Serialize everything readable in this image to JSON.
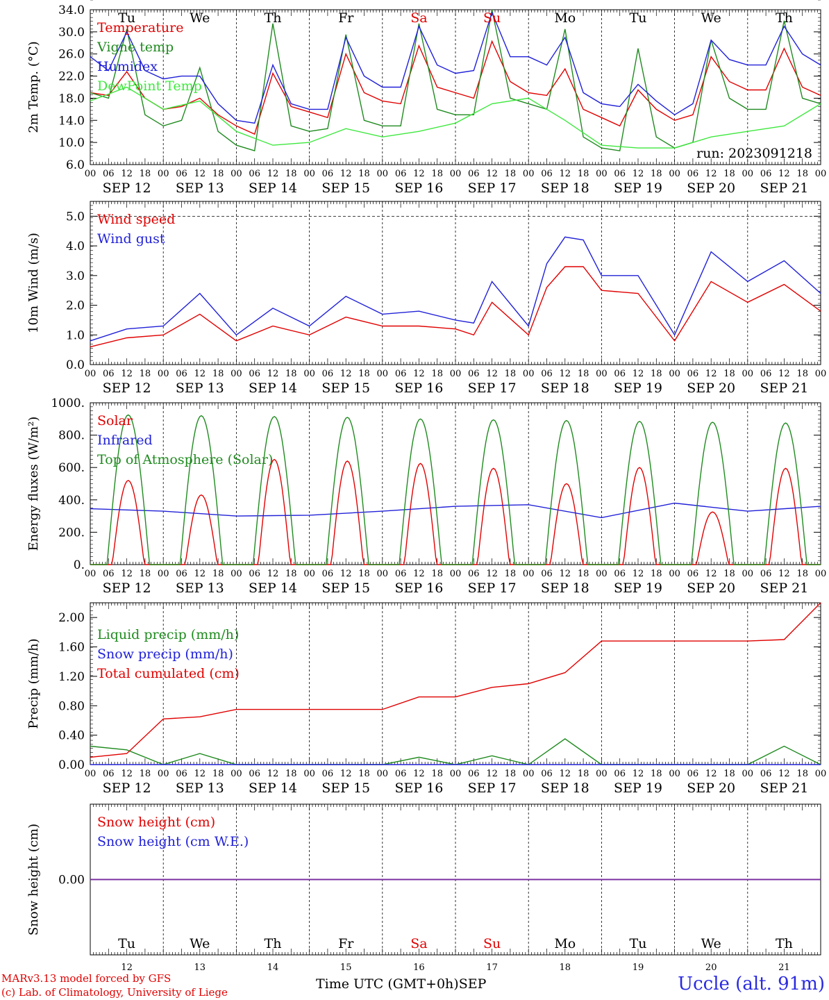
{
  "chart_data": {
    "type": "line",
    "time_axis": {
      "tick_hours": [
        "00",
        "06",
        "12",
        "18"
      ],
      "dates": [
        "SEP 12",
        "SEP 13",
        "SEP 14",
        "SEP 15",
        "SEP 16",
        "SEP 17",
        "SEP 18",
        "SEP 19",
        "SEP 20",
        "SEP 21"
      ],
      "weekdays": [
        "Tu",
        "We",
        "Th",
        "Fr",
        "Sa",
        "Su",
        "Mo",
        "Tu",
        "We",
        "Th"
      ],
      "weekend_indices": [
        4,
        5
      ],
      "day_numbers": [
        "12",
        "13",
        "14",
        "15",
        "16",
        "17",
        "18",
        "19",
        "20",
        "21"
      ],
      "xlabel": "Time UTC (GMT+0h)",
      "month": "SEP"
    },
    "panels": [
      {
        "id": "temperature",
        "ylabel": "2m Temp. (°C)",
        "ylim": [
          6,
          34
        ],
        "yticks": [
          "6.0",
          "10.0",
          "14.0",
          "18.0",
          "22.0",
          "26.0",
          "30.0",
          "34.0"
        ],
        "annotation": "run: 2023091218",
        "series": [
          {
            "name": "Temperature",
            "color": "#e00000",
            "x": [
              0,
              0.25,
              0.5,
              0.75,
              1,
              1.25,
              1.5,
              1.75,
              2,
              2.25,
              2.5,
              2.75,
              3,
              3.25,
              3.5,
              3.75,
              4,
              4.25,
              4.5,
              4.75,
              5,
              5.25,
              5.5,
              5.75,
              6,
              6.25,
              6.5,
              6.75,
              7,
              7.25,
              7.5,
              7.75,
              8,
              8.25,
              8.5,
              8.75,
              9,
              9.25,
              9.5,
              9.75,
              10
            ],
            "y": [
              19,
              18.5,
              22.8,
              18,
              16,
              16.5,
              18,
              15,
              13,
              11.5,
              22.5,
              16.5,
              15.5,
              14.5,
              26,
              19,
              17.5,
              17,
              27.5,
              20,
              19,
              18,
              28.3,
              21,
              19,
              18.5,
              23.3,
              16,
              14.5,
              13,
              19.5,
              16,
              14,
              15,
              25.5,
              21,
              19.5,
              19.5,
              27,
              20,
              18.5
            ]
          },
          {
            "name": "Vigne temp",
            "color": "#1f8a1f",
            "x": [
              0,
              0.25,
              0.5,
              0.75,
              1,
              1.25,
              1.5,
              1.75,
              2,
              2.25,
              2.5,
              2.75,
              3,
              3.25,
              3.5,
              3.75,
              4,
              4.25,
              4.5,
              4.75,
              5,
              5.25,
              5.5,
              5.75,
              6,
              6.25,
              6.5,
              6.75,
              7,
              7.25,
              7.5,
              7.75,
              8,
              8.25,
              8.5,
              8.75,
              9,
              9.25,
              9.5,
              9.75,
              10
            ],
            "y": [
              19,
              18,
              30.5,
              15,
              13,
              14,
              23.5,
              12,
              9.5,
              8.5,
              31.5,
              13,
              12,
              12.5,
              29.5,
              14,
              13,
              13,
              31.5,
              16,
              15,
              15,
              34,
              18,
              17,
              16,
              30.5,
              11,
              9,
              8.5,
              27,
              11,
              9,
              10,
              28.5,
              18,
              16,
              16,
              32,
              18,
              17
            ]
          },
          {
            "name": "Humidex",
            "color": "#2020d8",
            "x": [
              0,
              0.25,
              0.5,
              0.75,
              1,
              1.25,
              1.5,
              1.75,
              2,
              2.25,
              2.5,
              2.75,
              3,
              3.25,
              3.5,
              3.75,
              4,
              4.25,
              4.5,
              4.75,
              5,
              5.25,
              5.5,
              5.75,
              6,
              6.25,
              6.5,
              6.75,
              7,
              7.25,
              7.5,
              7.75,
              8,
              8.25,
              8.5,
              8.75,
              9,
              9.25,
              9.5,
              9.75,
              10
            ],
            "y": [
              25.5,
              23,
              30,
              23,
              21.5,
              22,
              22,
              17,
              14,
              13.5,
              24,
              17,
              16,
              16,
              29,
              22,
              20,
              20,
              31,
              24,
              22.5,
              23,
              33.5,
              25.5,
              25.5,
              24,
              29,
              19,
              17,
              16.5,
              20.5,
              17.5,
              15,
              17,
              28.5,
              25,
              24,
              24,
              31,
              26,
              24
            ]
          },
          {
            "name": "DewPoint Temp",
            "color": "#3ee83e",
            "x": [
              0,
              0.5,
              1,
              1.5,
              2,
              2.5,
              3,
              3.5,
              4,
              4.5,
              5,
              5.5,
              6,
              6.5,
              7,
              7.5,
              8,
              8.5,
              9,
              9.5,
              10
            ],
            "y": [
              17.5,
              20,
              16,
              17.5,
              12,
              9.5,
              10,
              12.5,
              11,
              12,
              13.5,
              17,
              18,
              14,
              9.5,
              9,
              9,
              11,
              12,
              13,
              17
            ]
          }
        ]
      },
      {
        "id": "wind",
        "ylabel": "10m Wind (m/s)",
        "ylim": [
          0,
          5.5
        ],
        "yticks": [
          "0.0",
          "1.0",
          "2.0",
          "3.0",
          "4.0",
          "5.0"
        ],
        "series": [
          {
            "name": "Wind speed",
            "color": "#e00000",
            "x": [
              0,
              0.5,
              1,
              1.5,
              2,
              2.5,
              3,
              3.5,
              4,
              4.5,
              5,
              5.25,
              5.5,
              6,
              6.25,
              6.5,
              6.75,
              7,
              7.5,
              8,
              8.5,
              9,
              9.5,
              10
            ],
            "y": [
              0.6,
              0.9,
              1.0,
              1.7,
              0.8,
              1.3,
              1.0,
              1.6,
              1.3,
              1.3,
              1.2,
              1.0,
              2.1,
              1.0,
              2.6,
              3.3,
              3.3,
              2.5,
              2.4,
              0.8,
              2.8,
              2.1,
              2.7,
              1.8
            ]
          },
          {
            "name": "Wind gust",
            "color": "#2020d8",
            "x": [
              0,
              0.5,
              1,
              1.5,
              2,
              2.5,
              3,
              3.5,
              4,
              4.5,
              5,
              5.25,
              5.5,
              6,
              6.25,
              6.5,
              6.75,
              7,
              7.5,
              8,
              8.5,
              9,
              9.5,
              10
            ],
            "y": [
              0.8,
              1.2,
              1.3,
              2.4,
              1.0,
              1.9,
              1.3,
              2.3,
              1.7,
              1.8,
              1.5,
              1.4,
              2.8,
              1.3,
              3.4,
              4.3,
              4.2,
              3.0,
              3.0,
              1.0,
              3.8,
              2.8,
              3.5,
              2.4
            ]
          }
        ]
      },
      {
        "id": "energy",
        "ylabel": "Energy fluxes (W/m²)",
        "ylim": [
          0,
          1000
        ],
        "yticks": [
          "0.",
          "200.",
          "400.",
          "600.",
          "800.",
          "1000."
        ],
        "series": [
          {
            "name": "Solar",
            "color": "#e00000",
            "peaks": [
              520,
              430,
              650,
              640,
              625,
              595,
              500,
              600,
              325,
              595
            ]
          },
          {
            "name": "Infrared",
            "color": "#2020d8",
            "x": [
              0,
              1,
              2,
              3,
              4,
              5,
              6,
              7,
              8,
              9,
              10
            ],
            "y": [
              345,
              330,
              300,
              305,
              330,
              360,
              370,
              290,
              380,
              330,
              360
            ]
          },
          {
            "name": "Top of Atmosphere (Solar)",
            "color": "#1f8a1f",
            "peaks": [
              925,
              920,
              915,
              910,
              900,
              895,
              890,
              885,
              880,
              875
            ]
          }
        ]
      },
      {
        "id": "precip",
        "ylabel": "Precip (mm/h)",
        "ylim": [
          0,
          2.2
        ],
        "yticks": [
          "0.00",
          "0.40",
          "0.80",
          "1.20",
          "1.60",
          "2.00"
        ],
        "series": [
          {
            "name": "Liquid precip (mm/h)",
            "color": "#1f8a1f",
            "x": [
              0,
              0.5,
              1,
              1.5,
              2,
              4,
              4.5,
              5,
              5.5,
              6,
              6.5,
              7,
              9,
              9.5,
              10
            ],
            "y": [
              0.25,
              0.2,
              0,
              0.15,
              0,
              0,
              0.1,
              0,
              0.12,
              0,
              0.35,
              0,
              0,
              0.25,
              0
            ]
          },
          {
            "name": "Snow precip (mm/h)",
            "color": "#2020d8",
            "x": [
              0,
              10
            ],
            "y": [
              0,
              0
            ]
          },
          {
            "name": "Total cumulated (cm)",
            "color": "#e00000",
            "x": [
              0,
              0.5,
              1,
              1.5,
              2,
              3,
              4,
              4.5,
              5,
              5.5,
              6,
              6.5,
              7,
              8,
              9,
              9.5,
              10
            ],
            "y": [
              0.1,
              0.15,
              0.62,
              0.65,
              0.75,
              0.75,
              0.75,
              0.92,
              0.92,
              1.05,
              1.1,
              1.25,
              1.68,
              1.68,
              1.68,
              1.7,
              2.2
            ]
          }
        ]
      },
      {
        "id": "snow",
        "ylabel": "Snow height (cm)",
        "ylim": [
          -1,
          1
        ],
        "yticks": [
          "0.00"
        ],
        "series": [
          {
            "name": "Snow height (cm)",
            "color": "#e00000",
            "x": [
              0,
              10
            ],
            "y": [
              0,
              0
            ]
          },
          {
            "name": "Snow height (cm W.E.)",
            "color": "#2020d8",
            "x": [
              0,
              10
            ],
            "y": [
              0,
              0
            ]
          }
        ]
      }
    ]
  },
  "footer": {
    "model": "MARv3.13 model forced by GFS",
    "lab": "(c) Lab. of Climatology, University of Liege",
    "station": "Uccle (alt. 91m)"
  }
}
